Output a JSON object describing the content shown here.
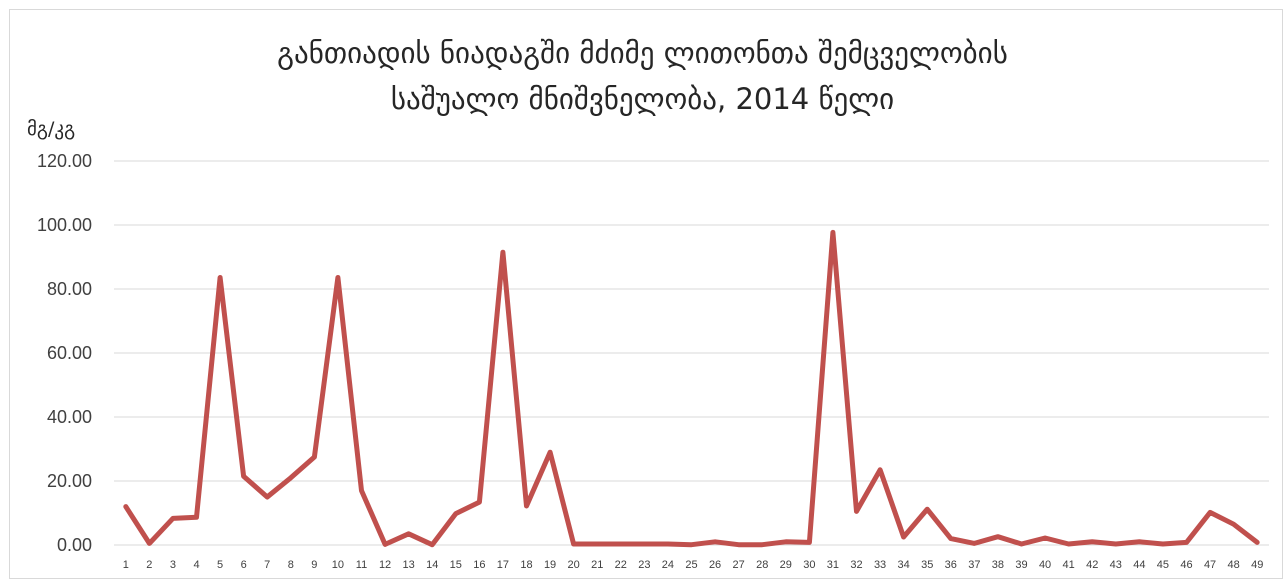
{
  "chart_data": {
    "type": "line",
    "title_lines": [
      "განთიადის ნიადაგში მძიმე ლითონთა შემცველობის",
      "საშუალო მნიშვნელობა, 2014 წელი"
    ],
    "ylabel": "მგ/კგ",
    "xlabel": "",
    "ylim": [
      0,
      120
    ],
    "y_ticks": [
      "0.00",
      "20.00",
      "40.00",
      "60.00",
      "80.00",
      "100.00",
      "120.00"
    ],
    "grid": true,
    "legend": "none",
    "line_color": "#c0504d",
    "categories": [
      "1",
      "2",
      "3",
      "4",
      "5",
      "6",
      "7",
      "8",
      "9",
      "10",
      "11",
      "12",
      "13",
      "14",
      "15",
      "16",
      "17",
      "18",
      "19",
      "20",
      "21",
      "22",
      "23",
      "24",
      "25",
      "26",
      "27",
      "28",
      "29",
      "30",
      "31",
      "32",
      "33",
      "34",
      "35",
      "36",
      "37",
      "38",
      "39",
      "40",
      "41",
      "42",
      "43",
      "44",
      "45",
      "46",
      "47",
      "48",
      "49"
    ],
    "series": [
      {
        "values": [
          12,
          0.5,
          8.3,
          8.7,
          83.6,
          21.5,
          15,
          21,
          27.5,
          83.6,
          17,
          0.2,
          3.5,
          0.1,
          9.8,
          13.4,
          91.5,
          12.2,
          29,
          0.3,
          0.3,
          0.3,
          0.3,
          0.3,
          0.1,
          1,
          0.1,
          0.1,
          1,
          0.8,
          97.7,
          10.5,
          23.5,
          2.5,
          11.2,
          2,
          0.5,
          2.6,
          0.3,
          2.2,
          0.3,
          1,
          0.3,
          1,
          0.3,
          0.8,
          10.2,
          6.5,
          0.8
        ]
      }
    ]
  }
}
